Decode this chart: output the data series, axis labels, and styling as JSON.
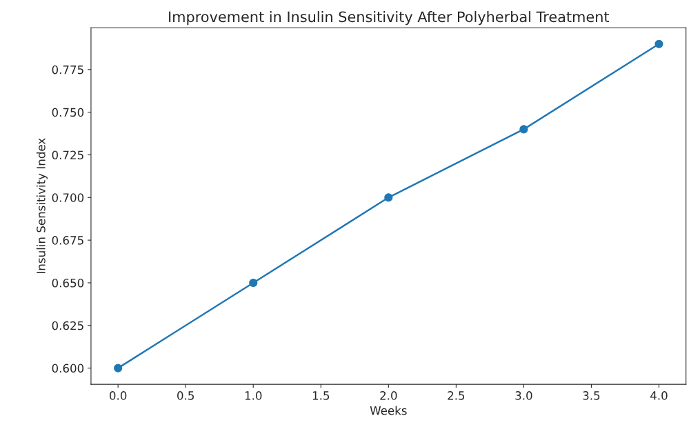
{
  "chart_data": {
    "type": "line",
    "title": "Improvement in Insulin Sensitivity After Polyherbal Treatment",
    "xlabel": "Weeks",
    "ylabel": "Insulin Sensitivity Index",
    "x": [
      0,
      1,
      2,
      3,
      4
    ],
    "series": [
      {
        "color": "#1f77b4",
        "values": [
          0.6,
          0.65,
          0.7,
          0.74,
          0.79
        ]
      }
    ],
    "xlim": [
      -0.2,
      4.2
    ],
    "xticks": [
      {
        "value": 0,
        "label": "0.0"
      },
      {
        "value": 0.5,
        "label": "0.5"
      },
      {
        "value": 1,
        "label": "1.0"
      },
      {
        "value": 1.5,
        "label": "1.5"
      },
      {
        "value": 2,
        "label": "2.0"
      },
      {
        "value": 2.5,
        "label": "2.5"
      },
      {
        "value": 3,
        "label": "3.0"
      },
      {
        "value": 3.5,
        "label": "3.5"
      },
      {
        "value": 4,
        "label": "4.0"
      }
    ],
    "ylim": [
      0.5905,
      0.7995
    ],
    "yticks": [
      {
        "value": 0.6,
        "label": "0.600"
      },
      {
        "value": 0.625,
        "label": "0.625"
      },
      {
        "value": 0.65,
        "label": "0.650"
      },
      {
        "value": 0.675,
        "label": "0.675"
      },
      {
        "value": 0.7,
        "label": "0.700"
      },
      {
        "value": 0.725,
        "label": "0.725"
      },
      {
        "value": 0.75,
        "label": "0.750"
      },
      {
        "value": 0.775,
        "label": "0.775"
      }
    ],
    "marker": "circle",
    "line_style": "solid",
    "grid": false
  }
}
